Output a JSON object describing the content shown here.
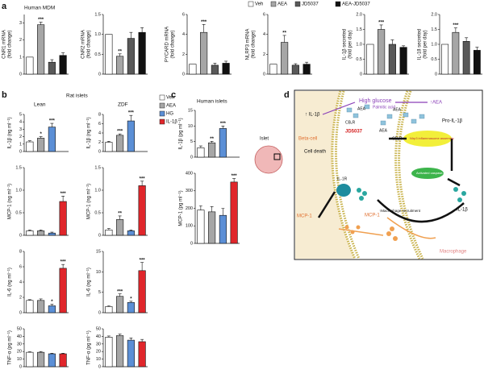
{
  "panel_labels": [
    "a",
    "b",
    "c",
    "d"
  ],
  "titles": [
    "Human MDM",
    "Rat islets",
    "Lean",
    "ZDF",
    "Human islets"
  ],
  "legends": [
    {
      "names": [
        "Veh",
        "AEA",
        "JD5037",
        "AEA-JD5037"
      ],
      "colors": [
        "#ffffff",
        "#a6a6a6",
        "#595959",
        "#111111"
      ]
    },
    {
      "names": [
        "Veh",
        "AEA",
        "HG",
        "IL-1β"
      ],
      "colors": [
        "#ffffff",
        "#a6a6a6",
        "#5b8fd6",
        "#e0262b"
      ]
    }
  ],
  "chart_data": [
    {
      "type": "bar",
      "ylabel": [
        "CNR1 mRNA",
        "(fold change)"
      ],
      "values": [
        1,
        2.9,
        0.7,
        1.1
      ],
      "errors": [
        0,
        0.15,
        0.15,
        0.15
      ],
      "labels": [
        null,
        "***",
        null,
        null
      ],
      "colors": [
        "#ffffff",
        "#a6a6a6",
        "#595959",
        "#111111"
      ],
      "ylim": [
        0,
        3.5
      ],
      "yticks": [
        0,
        1,
        2,
        3
      ]
    },
    {
      "type": "bar",
      "ylabel": [
        "CNR2 mRNA",
        "(fold change)"
      ],
      "values": [
        1,
        0.45,
        0.9,
        1.05
      ],
      "errors": [
        0,
        0.06,
        0.15,
        0.12
      ],
      "labels": [
        null,
        "**",
        null,
        null
      ],
      "colors": [
        "#ffffff",
        "#a6a6a6",
        "#595959",
        "#111111"
      ],
      "ylim": [
        0,
        1.5
      ],
      "yticks": [
        0,
        0.5,
        {
          "value": 1,
          "label": "1.0"
        },
        1.5
      ]
    },
    {
      "type": "bar",
      "ylabel": [
        "PYCARD mRNA",
        "(fold change)"
      ],
      "values": [
        1,
        4.2,
        0.9,
        1.1
      ],
      "errors": [
        0,
        0.8,
        0.2,
        0.2
      ],
      "labels": [
        null,
        "***",
        null,
        null
      ],
      "colors": [
        "#ffffff",
        "#a6a6a6",
        "#595959",
        "#111111"
      ],
      "ylim": [
        0,
        6
      ],
      "yticks": [
        0,
        2,
        4,
        6
      ]
    },
    {
      "type": "bar",
      "ylabel": [
        "NLRP3 mRNA",
        "(fold change)"
      ],
      "values": [
        1,
        3.2,
        0.9,
        1.0
      ],
      "errors": [
        0,
        0.7,
        0.15,
        0.2
      ],
      "labels": [
        null,
        "**",
        null,
        null
      ],
      "colors": [
        "#ffffff",
        "#a6a6a6",
        "#595959",
        "#111111"
      ],
      "ylim": [
        0,
        6
      ],
      "yticks": [
        0,
        2,
        4,
        6
      ]
    },
    {
      "type": "bar",
      "ylabel": [
        "IL-1β secreted",
        "(fold per day)"
      ],
      "values": [
        1,
        1.5,
        1.0,
        0.9
      ],
      "errors": [
        0,
        0.15,
        0.15,
        0.05
      ],
      "labels": [
        null,
        "***",
        null,
        null
      ],
      "colors": [
        "#ffffff",
        "#a6a6a6",
        "#595959",
        "#111111"
      ],
      "ylim": [
        0,
        2
      ],
      "yticks": [
        0,
        0.5,
        {
          "value": 1,
          "label": "1.0"
        },
        1.5,
        {
          "value": 2,
          "label": "2.0"
        }
      ]
    },
    {
      "type": "bar",
      "ylabel": [
        "IL-18 secreted",
        "(fold per day)"
      ],
      "values": [
        1,
        1.4,
        1.1,
        0.8
      ],
      "errors": [
        0,
        0.15,
        0.12,
        0.1
      ],
      "labels": [
        null,
        "***",
        null,
        null
      ],
      "colors": [
        "#ffffff",
        "#a6a6a6",
        "#595959",
        "#111111"
      ],
      "ylim": [
        0,
        2
      ],
      "yticks": [
        0,
        0.5,
        {
          "value": 1,
          "label": "1.0"
        },
        1.5,
        {
          "value": 2,
          "label": "2.0"
        }
      ]
    },
    {
      "type": "bar",
      "ylabel": [
        "IL-1β (ng ml⁻¹)"
      ],
      "values": [
        1.3,
        1.8,
        3.3,
        null
      ],
      "errors": [
        0.15,
        0.2,
        0.5,
        null
      ],
      "labels": [
        null,
        "*",
        "***",
        null
      ],
      "colors": [
        "#ffffff",
        "#a6a6a6",
        "#5b8fd6",
        "#e0262b"
      ],
      "ylim": [
        0,
        5
      ],
      "yticks": [
        0,
        1,
        2,
        3,
        4,
        5
      ]
    },
    {
      "type": "bar",
      "ylabel": [
        "IL-1β (ng ml⁻¹)"
      ],
      "values": [
        2,
        3.5,
        6.6,
        null
      ],
      "errors": [
        0.2,
        0.3,
        1.2,
        null
      ],
      "labels": [
        null,
        "***",
        "***",
        null
      ],
      "colors": [
        "#ffffff",
        "#a6a6a6",
        "#5b8fd6",
        "#e0262b"
      ],
      "ylim": [
        0,
        8
      ],
      "yticks": [
        0,
        2,
        4,
        6,
        8
      ]
    },
    {
      "type": "bar",
      "ylabel": [
        "MCP-1 (ng ml⁻¹)"
      ],
      "values": [
        0.1,
        0.1,
        0.05,
        0.75
      ],
      "errors": [
        0.02,
        0.02,
        0.02,
        0.12
      ],
      "labels": [
        null,
        null,
        null,
        "***"
      ],
      "colors": [
        "#ffffff",
        "#a6a6a6",
        "#5b8fd6",
        "#e0262b"
      ],
      "ylim": [
        0,
        1.5
      ],
      "yticks": [
        0,
        0.5,
        {
          "value": 1,
          "label": "1.0"
        },
        1.5
      ]
    },
    {
      "type": "bar",
      "ylabel": [
        "MCP-1 (ng ml⁻¹)"
      ],
      "values": [
        0.12,
        0.35,
        0.1,
        1.1
      ],
      "errors": [
        0.03,
        0.08,
        0.02,
        0.1
      ],
      "labels": [
        null,
        "**",
        null,
        "***"
      ],
      "colors": [
        "#ffffff",
        "#a6a6a6",
        "#5b8fd6",
        "#e0262b"
      ],
      "ylim": [
        0,
        1.5
      ],
      "yticks": [
        0,
        0.5,
        {
          "value": 1,
          "label": "1.0"
        },
        1.5
      ]
    },
    {
      "type": "bar",
      "ylabel": [
        "IL-6 (ng ml⁻¹)"
      ],
      "values": [
        1.6,
        1.6,
        0.9,
        5.8
      ],
      "errors": [
        0.1,
        0.2,
        0.2,
        0.5
      ],
      "labels": [
        null,
        null,
        "*",
        "***"
      ],
      "colors": [
        "#ffffff",
        "#a6a6a6",
        "#5b8fd6",
        "#e0262b"
      ],
      "ylim": [
        0,
        8
      ],
      "yticks": [
        0,
        2,
        4,
        6,
        8
      ]
    },
    {
      "type": "bar",
      "ylabel": [
        "IL-6 (ng ml⁻¹)"
      ],
      "values": [
        1.5,
        4,
        2.5,
        10.3
      ],
      "errors": [
        0.2,
        0.6,
        0.3,
        2
      ],
      "labels": [
        null,
        "***",
        "*",
        "***"
      ],
      "colors": [
        "#ffffff",
        "#a6a6a6",
        "#5b8fd6",
        "#e0262b"
      ],
      "ylim": [
        0,
        15
      ],
      "yticks": [
        0,
        5,
        10,
        15
      ]
    },
    {
      "type": "bar",
      "ylabel": [
        "TNF-α (pg ml⁻¹)"
      ],
      "values": [
        19,
        19,
        17,
        17
      ],
      "errors": [
        0.8,
        1,
        0.8,
        0.8
      ],
      "labels": [
        null,
        null,
        null,
        null
      ],
      "colors": [
        "#ffffff",
        "#a6a6a6",
        "#5b8fd6",
        "#e0262b"
      ],
      "ylim": [
        0,
        50
      ],
      "yticks": [
        0,
        10,
        20,
        30,
        40,
        50
      ]
    },
    {
      "type": "bar",
      "ylabel": [
        "TNF-α (pg ml⁻¹)"
      ],
      "values": [
        39,
        41,
        35,
        33
      ],
      "errors": [
        1.5,
        2,
        3,
        3
      ],
      "labels": [
        null,
        null,
        null,
        null
      ],
      "colors": [
        "#ffffff",
        "#a6a6a6",
        "#5b8fd6",
        "#e0262b"
      ],
      "ylim": [
        0,
        50
      ],
      "yticks": [
        0,
        10,
        20,
        30,
        40,
        50
      ]
    },
    {
      "type": "bar",
      "ylabel": [
        "IL-1β (pg ml⁻¹)"
      ],
      "values": [
        3,
        4.6,
        9.2,
        null
      ],
      "errors": [
        0.6,
        0.5,
        0.8,
        null
      ],
      "labels": [
        null,
        "**",
        "***",
        null
      ],
      "colors": [
        "#ffffff",
        "#a6a6a6",
        "#5b8fd6",
        "#e0262b"
      ],
      "ylim": [
        0,
        15
      ],
      "yticks": [
        0,
        5,
        10,
        15
      ]
    },
    {
      "type": "bar",
      "ylabel": [
        "MCP-1 (pg ml⁻¹)"
      ],
      "values": [
        190,
        180,
        160,
        350
      ],
      "errors": [
        25,
        30,
        40,
        20
      ],
      "labels": [
        null,
        null,
        null,
        "***"
      ],
      "colors": [
        "#ffffff",
        "#a6a6a6",
        "#5b8fd6",
        "#e0262b"
      ],
      "ylim": [
        0,
        400
      ],
      "yticks": [
        0,
        100,
        200,
        300,
        400
      ]
    }
  ],
  "diagram": {
    "islet": "Islet",
    "high_glucose": "High glucose",
    "palmitic": "Palmitic acid",
    "aea_up": "↑AEA",
    "il1b_up": "↑ IL-1β",
    "cb1r_1": "CB₁R",
    "aea_1": "AEA",
    "aea_2": "AEA",
    "aea_3": "AEA",
    "jd": "JD5037",
    "beta": "Beta-cell",
    "death": "Cell death",
    "cb1r_2": "CB₁R",
    "nlrp3": "Nlrp3 inflammasome assembly",
    "casp": "Activated caspase-1",
    "pro": "Pro-IL-1β",
    "il1r": "IL-1R",
    "il1b": "IL-1β",
    "mcp_1": "MCP-1",
    "mcp_2": "MCP-1",
    "recruit": "↑Macrophage recruitment",
    "macro": "Macrophage"
  }
}
